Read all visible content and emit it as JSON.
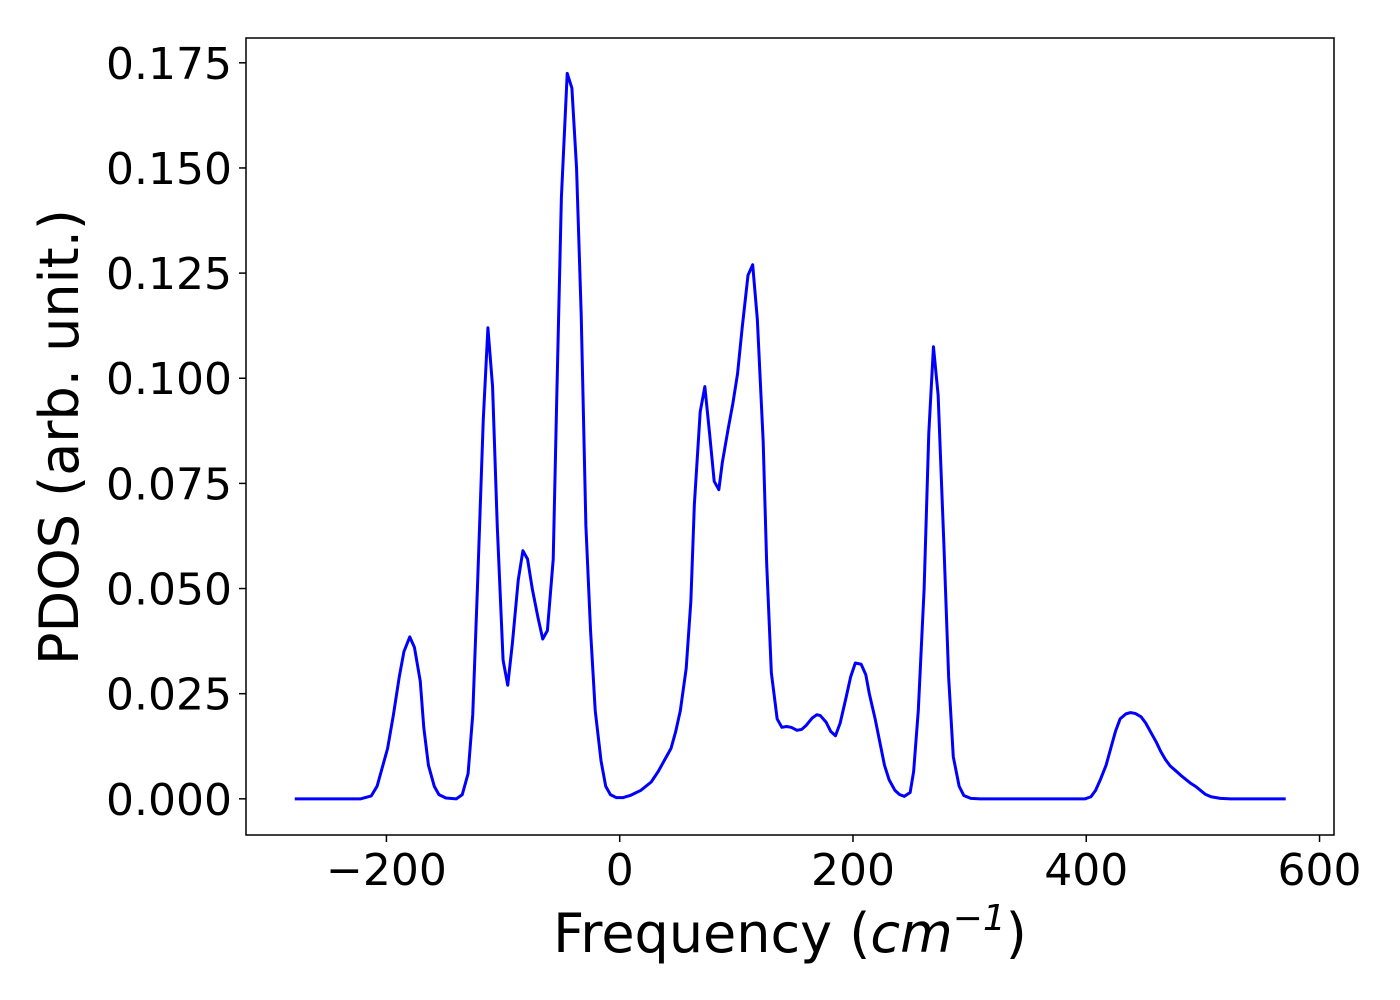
{
  "chart_data": {
    "type": "line",
    "xlabel": [
      "Frequency (",
      "cm",
      "−1",
      ")"
    ],
    "ylabel": "PDOS (arb. unit.)",
    "xlim": [
      -320.4,
      612.4
    ],
    "ylim": [
      -0.0086,
      0.1809
    ],
    "xticks": [
      {
        "value": -200,
        "label": "−200"
      },
      0,
      200,
      400,
      600
    ],
    "yticks": [
      {
        "value": 0,
        "label": "0.000"
      },
      {
        "value": 0.025,
        "label": "0.025"
      },
      {
        "value": 0.05,
        "label": "0.050"
      },
      {
        "value": 0.075,
        "label": "0.075"
      },
      {
        "value": 0.1,
        "label": "0.100"
      },
      {
        "value": 0.125,
        "label": "0.125"
      },
      {
        "value": 0.15,
        "label": "0.150"
      },
      {
        "value": 0.175,
        "label": "0.175"
      }
    ],
    "grid": false,
    "x": [
      -278.6,
      -222,
      -213,
      -208,
      -204,
      -199,
      -194,
      -189,
      -185,
      -180,
      -176,
      -171,
      -168,
      -164,
      -159,
      -155,
      -149,
      -140,
      -135,
      -130,
      -126,
      -122,
      -117,
      -113,
      -109,
      -105,
      -100,
      -96,
      -92,
      -87,
      -83,
      -79,
      -75,
      -70,
      -66,
      -62,
      -57,
      -54,
      -50,
      -45,
      -41,
      -37,
      -33,
      -29,
      -25,
      -21,
      -16,
      -12,
      -8,
      -3,
      3,
      9,
      18,
      27,
      33,
      39,
      44,
      48,
      52,
      57,
      61,
      64,
      69,
      73,
      77,
      81,
      85,
      88,
      93,
      97,
      101,
      105,
      110,
      114,
      118,
      123,
      126,
      130,
      135,
      139,
      143,
      147,
      152,
      156,
      160,
      165,
      169,
      172,
      177,
      181,
      185,
      189,
      194,
      198,
      202,
      207,
      211,
      214,
      219,
      223,
      227,
      231,
      236,
      240,
      244,
      249,
      252,
      256,
      261,
      265,
      269,
      273,
      278,
      282,
      286,
      291,
      295,
      301,
      309,
      399,
      404,
      408,
      412,
      417,
      421,
      425,
      429,
      434,
      438,
      442,
      447,
      451,
      455,
      460,
      464,
      468,
      472,
      477,
      481,
      485,
      489,
      494,
      498,
      502,
      507,
      515,
      524,
      571
    ],
    "series": [
      {
        "name": "PDOS",
        "color": "#0000ff",
        "values": [
          0,
          0,
          0.0007,
          0.003,
          0.007,
          0.012,
          0.02,
          0.029,
          0.035,
          0.0385,
          0.036,
          0.028,
          0.017,
          0.008,
          0.003,
          0.001,
          0.0002,
          0,
          0.001,
          0.006,
          0.02,
          0.05,
          0.09,
          0.112,
          0.098,
          0.065,
          0.033,
          0.027,
          0.037,
          0.052,
          0.059,
          0.057,
          0.05,
          0.043,
          0.038,
          0.04,
          0.057,
          0.095,
          0.143,
          0.1725,
          0.169,
          0.15,
          0.115,
          0.065,
          0.04,
          0.021,
          0.009,
          0.003,
          0.001,
          0.0003,
          0.0003,
          0.0008,
          0.002,
          0.004,
          0.0065,
          0.0095,
          0.012,
          0.016,
          0.021,
          0.031,
          0.047,
          0.07,
          0.092,
          0.098,
          0.087,
          0.0755,
          0.0735,
          0.08,
          0.088,
          0.094,
          0.101,
          0.112,
          0.1245,
          0.127,
          0.114,
          0.085,
          0.056,
          0.03,
          0.019,
          0.017,
          0.0172,
          0.017,
          0.0163,
          0.0165,
          0.0175,
          0.0192,
          0.02,
          0.0198,
          0.0182,
          0.016,
          0.015,
          0.018,
          0.024,
          0.029,
          0.0323,
          0.032,
          0.0295,
          0.025,
          0.019,
          0.0135,
          0.008,
          0.0045,
          0.002,
          0.001,
          0.0006,
          0.0015,
          0.0065,
          0.021,
          0.05,
          0.087,
          0.1075,
          0.096,
          0.06,
          0.029,
          0.01,
          0.003,
          0.0008,
          0.0001,
          0,
          0,
          0.0005,
          0.002,
          0.0045,
          0.008,
          0.012,
          0.016,
          0.019,
          0.0202,
          0.0205,
          0.0203,
          0.0195,
          0.018,
          0.016,
          0.0135,
          0.0112,
          0.0093,
          0.0078,
          0.0066,
          0.0056,
          0.0047,
          0.0038,
          0.0029,
          0.002,
          0.0011,
          0.0005,
          0.0001,
          0,
          0
        ]
      }
    ]
  }
}
